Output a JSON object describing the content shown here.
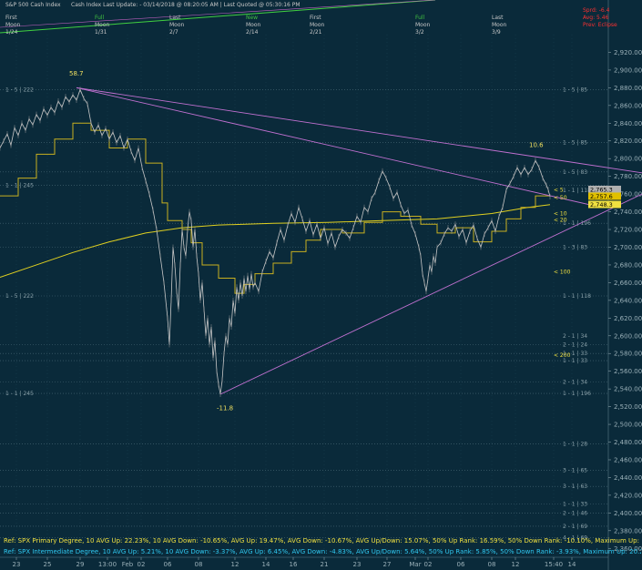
{
  "header": {
    "title": "S&P 500 Cash Index",
    "subtitle": "Cash Index  Last Update: - 03/14/2018 @ 08:20:05 AM | Last Quoted @ 05:30:16 PM",
    "moons": [
      {
        "phase_label": "First",
        "name_label": "Moon",
        "date": "1/24",
        "phase_color": "#c8c8c8"
      },
      {
        "phase_label": "Full",
        "name_label": "Moon",
        "date": "1/31",
        "phase_color": "#40c040"
      },
      {
        "phase_label": "Last",
        "name_label": "Moon",
        "date": "2/7",
        "phase_color": "#c8c8c8"
      },
      {
        "phase_label": "New",
        "name_label": "Moon",
        "date": "2/14",
        "phase_color": "#40c040"
      },
      {
        "phase_label": "First",
        "name_label": "Moon",
        "date": "2/21",
        "phase_color": "#c8c8c8"
      },
      {
        "phase_label": "Full",
        "name_label": "Moon",
        "date": "3/2",
        "phase_color": "#40c040"
      },
      {
        "phase_label": "Last",
        "name_label": "Moon",
        "date": "3/9",
        "phase_color": "#c8c8c8"
      }
    ],
    "right_stats": [
      "Sprd: -6.4",
      "Avg: 5.46",
      "Prev: Eclipse"
    ]
  },
  "chart_data": {
    "type": "line",
    "ylabel": "",
    "ylim": [
      2350,
      2940
    ],
    "y_ticks": [
      2360,
      2380,
      2400,
      2420,
      2440,
      2460,
      2480,
      2500,
      2520,
      2540,
      2560,
      2580,
      2600,
      2620,
      2640,
      2660,
      2680,
      2700,
      2720,
      2740,
      2760,
      2780,
      2800,
      2820,
      2840,
      2860,
      2880,
      2900,
      2920
    ],
    "x_ticks": [
      "23",
      "25",
      "29",
      "13:00",
      "Feb",
      "02",
      "06",
      "08",
      "12",
      "14",
      "16",
      "21",
      "23",
      "27",
      "Mar",
      "02",
      "06",
      "08",
      "12",
      "15:40",
      "14"
    ],
    "series_price": [
      [
        0,
        2812
      ],
      [
        4,
        2820
      ],
      [
        8,
        2828
      ],
      [
        12,
        2815
      ],
      [
        16,
        2835
      ],
      [
        20,
        2826
      ],
      [
        24,
        2840
      ],
      [
        28,
        2832
      ],
      [
        32,
        2845
      ],
      [
        36,
        2838
      ],
      [
        40,
        2850
      ],
      [
        44,
        2843
      ],
      [
        48,
        2856
      ],
      [
        52,
        2849
      ],
      [
        56,
        2858
      ],
      [
        60,
        2852
      ],
      [
        64,
        2865
      ],
      [
        68,
        2858
      ],
      [
        72,
        2870
      ],
      [
        76,
        2864
      ],
      [
        80,
        2872
      ],
      [
        84,
        2866
      ],
      [
        88,
        2878
      ],
      [
        92,
        2868
      ],
      [
        96,
        2862
      ],
      [
        100,
        2840
      ],
      [
        104,
        2830
      ],
      [
        108,
        2838
      ],
      [
        112,
        2826
      ],
      [
        116,
        2834
      ],
      [
        120,
        2822
      ],
      [
        124,
        2830
      ],
      [
        128,
        2818
      ],
      [
        132,
        2826
      ],
      [
        136,
        2812
      ],
      [
        140,
        2822
      ],
      [
        144,
        2808
      ],
      [
        148,
        2798
      ],
      [
        152,
        2812
      ],
      [
        156,
        2790
      ],
      [
        160,
        2775
      ],
      [
        164,
        2760
      ],
      [
        168,
        2742
      ],
      [
        172,
        2720
      ],
      [
        176,
        2690
      ],
      [
        180,
        2660
      ],
      [
        184,
        2620
      ],
      [
        186,
        2590
      ],
      [
        188,
        2640
      ],
      [
        190,
        2700
      ],
      [
        192,
        2680
      ],
      [
        194,
        2650
      ],
      [
        196,
        2630
      ],
      [
        198,
        2680
      ],
      [
        200,
        2720
      ],
      [
        202,
        2700
      ],
      [
        204,
        2690
      ],
      [
        206,
        2720
      ],
      [
        208,
        2740
      ],
      [
        210,
        2730
      ],
      [
        212,
        2700
      ],
      [
        214,
        2720
      ],
      [
        216,
        2690
      ],
      [
        218,
        2670
      ],
      [
        220,
        2640
      ],
      [
        222,
        2660
      ],
      [
        224,
        2630
      ],
      [
        226,
        2600
      ],
      [
        228,
        2620
      ],
      [
        230,
        2590
      ],
      [
        232,
        2610
      ],
      [
        234,
        2575
      ],
      [
        236,
        2595
      ],
      [
        238,
        2560
      ],
      [
        240,
        2545
      ],
      [
        242,
        2534
      ],
      [
        244,
        2550
      ],
      [
        246,
        2580
      ],
      [
        248,
        2600
      ],
      [
        250,
        2590
      ],
      [
        252,
        2620
      ],
      [
        254,
        2610
      ],
      [
        256,
        2640
      ],
      [
        258,
        2625
      ],
      [
        260,
        2655
      ],
      [
        262,
        2640
      ],
      [
        264,
        2660
      ],
      [
        266,
        2645
      ],
      [
        268,
        2665
      ],
      [
        270,
        2650
      ],
      [
        272,
        2668
      ],
      [
        274,
        2652
      ],
      [
        276,
        2670
      ],
      [
        278,
        2655
      ],
      [
        280,
        2660
      ],
      [
        284,
        2650
      ],
      [
        288,
        2672
      ],
      [
        292,
        2684
      ],
      [
        296,
        2695
      ],
      [
        300,
        2688
      ],
      [
        304,
        2705
      ],
      [
        308,
        2720
      ],
      [
        312,
        2708
      ],
      [
        316,
        2725
      ],
      [
        320,
        2738
      ],
      [
        324,
        2728
      ],
      [
        328,
        2745
      ],
      [
        332,
        2732
      ],
      [
        336,
        2718
      ],
      [
        340,
        2730
      ],
      [
        344,
        2714
      ],
      [
        348,
        2726
      ],
      [
        352,
        2710
      ],
      [
        356,
        2722
      ],
      [
        360,
        2704
      ],
      [
        364,
        2716
      ],
      [
        368,
        2700
      ],
      [
        372,
        2712
      ],
      [
        376,
        2720
      ],
      [
        380,
        2716
      ],
      [
        384,
        2710
      ],
      [
        388,
        2722
      ],
      [
        392,
        2735
      ],
      [
        396,
        2728
      ],
      [
        400,
        2745
      ],
      [
        404,
        2740
      ],
      [
        408,
        2755
      ],
      [
        412,
        2762
      ],
      [
        416,
        2775
      ],
      [
        420,
        2786
      ],
      [
        424,
        2778
      ],
      [
        428,
        2768
      ],
      [
        432,
        2755
      ],
      [
        436,
        2762
      ],
      [
        440,
        2748
      ],
      [
        444,
        2738
      ],
      [
        448,
        2742
      ],
      [
        452,
        2725
      ],
      [
        456,
        2715
      ],
      [
        460,
        2700
      ],
      [
        462,
        2690
      ],
      [
        464,
        2670
      ],
      [
        466,
        2660
      ],
      [
        468,
        2650
      ],
      [
        470,
        2665
      ],
      [
        472,
        2680
      ],
      [
        474,
        2672
      ],
      [
        476,
        2690
      ],
      [
        478,
        2682
      ],
      [
        480,
        2700
      ],
      [
        484,
        2705
      ],
      [
        488,
        2715
      ],
      [
        492,
        2722
      ],
      [
        496,
        2718
      ],
      [
        500,
        2726
      ],
      [
        504,
        2712
      ],
      [
        508,
        2720
      ],
      [
        512,
        2705
      ],
      [
        516,
        2718
      ],
      [
        520,
        2725
      ],
      [
        524,
        2710
      ],
      [
        528,
        2700
      ],
      [
        532,
        2715
      ],
      [
        536,
        2722
      ],
      [
        540,
        2730
      ],
      [
        544,
        2718
      ],
      [
        548,
        2735
      ],
      [
        552,
        2745
      ],
      [
        556,
        2765
      ],
      [
        560,
        2772
      ],
      [
        564,
        2780
      ],
      [
        568,
        2790
      ],
      [
        572,
        2782
      ],
      [
        576,
        2790
      ],
      [
        580,
        2782
      ],
      [
        584,
        2788
      ],
      [
        588,
        2798
      ],
      [
        592,
        2790
      ],
      [
        596,
        2778
      ],
      [
        600,
        2770
      ],
      [
        602,
        2765
      ],
      [
        604,
        2757
      ]
    ],
    "yellow_upper_band": [
      [
        0,
        2758
      ],
      [
        20,
        2758
      ],
      [
        20,
        2778
      ],
      [
        40,
        2778
      ],
      [
        40,
        2805
      ],
      [
        60,
        2805
      ],
      [
        60,
        2822
      ],
      [
        80,
        2822
      ],
      [
        80,
        2840
      ],
      [
        100,
        2840
      ],
      [
        100,
        2832
      ],
      [
        120,
        2832
      ],
      [
        120,
        2812
      ],
      [
        140,
        2812
      ],
      [
        140,
        2822
      ],
      [
        160,
        2822
      ],
      [
        160,
        2795
      ],
      [
        178,
        2795
      ],
      [
        178,
        2750
      ],
      [
        184,
        2750
      ],
      [
        184,
        2730
      ],
      [
        200,
        2730
      ],
      [
        200,
        2720
      ],
      [
        210,
        2720
      ],
      [
        210,
        2705
      ],
      [
        222,
        2705
      ],
      [
        222,
        2680
      ],
      [
        240,
        2680
      ],
      [
        240,
        2665
      ],
      [
        258,
        2665
      ],
      [
        258,
        2648
      ],
      [
        268,
        2648
      ],
      [
        268,
        2658
      ],
      [
        280,
        2658
      ],
      [
        280,
        2670
      ],
      [
        300,
        2670
      ],
      [
        300,
        2682
      ],
      [
        320,
        2682
      ],
      [
        320,
        2695
      ],
      [
        336,
        2695
      ],
      [
        336,
        2708
      ],
      [
        352,
        2708
      ],
      [
        352,
        2720
      ],
      [
        376,
        2720
      ],
      [
        376,
        2716
      ],
      [
        400,
        2716
      ],
      [
        400,
        2728
      ],
      [
        420,
        2728
      ],
      [
        420,
        2740
      ],
      [
        440,
        2740
      ],
      [
        440,
        2735
      ],
      [
        462,
        2735
      ],
      [
        462,
        2726
      ],
      [
        480,
        2726
      ],
      [
        480,
        2716
      ],
      [
        500,
        2716
      ],
      [
        500,
        2722
      ],
      [
        520,
        2722
      ],
      [
        520,
        2706
      ],
      [
        540,
        2706
      ],
      [
        540,
        2718
      ],
      [
        556,
        2718
      ],
      [
        556,
        2732
      ],
      [
        572,
        2732
      ],
      [
        572,
        2745
      ],
      [
        588,
        2745
      ],
      [
        588,
        2758
      ],
      [
        604,
        2758
      ]
    ],
    "yellow_lower_band": [
      [
        0,
        2666
      ],
      [
        40,
        2680
      ],
      [
        80,
        2694
      ],
      [
        120,
        2706
      ],
      [
        160,
        2716
      ],
      [
        200,
        2722
      ],
      [
        240,
        2725
      ],
      [
        300,
        2727
      ],
      [
        360,
        2728
      ],
      [
        420,
        2730
      ],
      [
        480,
        2732
      ],
      [
        540,
        2738
      ],
      [
        580,
        2745
      ],
      [
        604,
        2748
      ]
    ],
    "magenta_lines": [
      {
        "from": [
          84,
          2880
        ],
        "to": [
          705,
          2784
        ]
      },
      {
        "from": [
          84,
          2880
        ],
        "to": [
          660,
          2745
        ]
      },
      {
        "from": [
          242,
          2534
        ],
        "to": [
          705,
          2760
        ]
      }
    ],
    "gray_levels": [
      2878,
      2818,
      2785,
      2770,
      2727,
      2700,
      2645,
      2590,
      2580,
      2572,
      2548,
      2535,
      2478,
      2448,
      2430,
      2410,
      2400,
      2385,
      2372
    ],
    "left_labels": [
      {
        "text": "1 - 5 | 222",
        "y": 2878
      },
      {
        "text": "1 - 1 | 245",
        "y": 2770
      },
      {
        "text": "1 - 5 | 222",
        "y": 2645
      },
      {
        "text": "1 - 1 | 245",
        "y": 2535
      }
    ],
    "right_labels": [
      {
        "text": "1 - 5 | 85",
        "y": 2878
      },
      {
        "text": "1 - 5 | 85",
        "y": 2818
      },
      {
        "text": "1 - 5 | 83",
        "y": 2785
      },
      {
        "text": "1 - 1 | 118",
        "y": 2764
      },
      {
        "text": "1 - 1 | 196",
        "y": 2727
      },
      {
        "text": "1 - 3 | 83",
        "y": 2700
      },
      {
        "text": "1 - 1 | 118",
        "y": 2645
      },
      {
        "text": "2 - 1 | 34",
        "y": 2600
      },
      {
        "text": "2 - 1 | 24",
        "y": 2590
      },
      {
        "text": "1 - 1 | 33",
        "y": 2580
      },
      {
        "text": "1 - 1 | 33",
        "y": 2572
      },
      {
        "text": "2 - 1 | 34",
        "y": 2548
      },
      {
        "text": "1 - 1 | 196",
        "y": 2535
      },
      {
        "text": "1 - 1 | 28",
        "y": 2478
      },
      {
        "text": "3 - 1 | 65",
        "y": 2448
      },
      {
        "text": "3 - 1 | 63",
        "y": 2430
      },
      {
        "text": "1 - 1 | 33",
        "y": 2410
      },
      {
        "text": "2 - 1 | 46",
        "y": 2400
      },
      {
        "text": "2 - 1 | 69",
        "y": 2385
      },
      {
        "text": "4 - 1 | 69",
        "y": 2372
      }
    ],
    "ma_labels": [
      {
        "text": "< 5",
        "y": 2765
      },
      {
        "text": "< 50",
        "y": 2756
      },
      {
        "text": "< 10",
        "y": 2738
      },
      {
        "text": "< 20",
        "y": 2731
      },
      {
        "text": "< 100",
        "y": 2672
      },
      {
        "text": "< 200",
        "y": 2578
      }
    ],
    "price_tags": [
      {
        "text": "2,765.3",
        "y": 2765.3,
        "color": "#b0b0b0"
      },
      {
        "text": "2,757.6",
        "y": 2757.6,
        "color": "#e0c000"
      },
      {
        "text": "2,748.3",
        "y": 2748.3,
        "color": "#f0e040"
      }
    ],
    "annotations": [
      {
        "text": "58.7",
        "x": 76,
        "y": 2894,
        "color": "#f0e060"
      },
      {
        "text": "10.6",
        "x": 581,
        "y": 2813,
        "color": "#f0e060"
      },
      {
        "text": "-11.8",
        "x": 238,
        "y": 2516,
        "color": "#f0e060"
      }
    ]
  },
  "footer": {
    "line1": "Ref: SPX Primary Degree, 10 AVG Up: 22.23%, 10 AVG Down: -10.65%, AVG Up: 19.47%, AVG Down: -10.67%, AVG Up/Down: 15.07%, 50%  Up Rank: 16.59%, 50% Down Rank: -10.10%, Maximum Up: 58.71%, Maximum",
    "line2": "Ref: SPX Intermediate Degree, 10 AVG Up: 5.21%, 10 AVG Down: -3.37%, AVG Up: 6.45%, AVG Down: -4.83%, AVG Up/Down: 5.64%, 50%  Up Rank: 5.85%, 50% Down Rank: -3.93%, Maximum Up: 20.27%, Maximum Dc"
  }
}
